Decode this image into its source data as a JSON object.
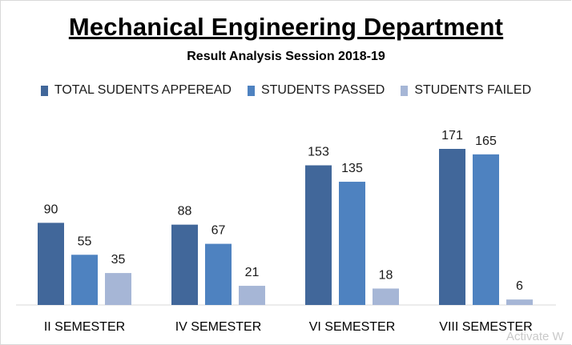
{
  "chart_data": {
    "type": "bar",
    "title": "Mechanical Engineering Department",
    "subtitle": "Result Analysis Session 2018-19",
    "categories": [
      "II SEMESTER",
      "IV SEMESTER",
      "VI SEMESTER",
      "VIII SEMESTER"
    ],
    "series": [
      {
        "name": "TOTAL SUDENTS APPEREAD",
        "values": [
          90,
          88,
          153,
          171
        ],
        "color": "#41679a"
      },
      {
        "name": "STUDENTS PASSED",
        "values": [
          55,
          67,
          135,
          165
        ],
        "color": "#4e82c0"
      },
      {
        "name": "STUDENTS FAILED",
        "values": [
          35,
          21,
          18,
          6
        ],
        "color": "#a6b6d6"
      }
    ],
    "ylim": [
      0,
      180
    ],
    "legend_position": "top",
    "grid": false
  },
  "watermark": "Activate W"
}
